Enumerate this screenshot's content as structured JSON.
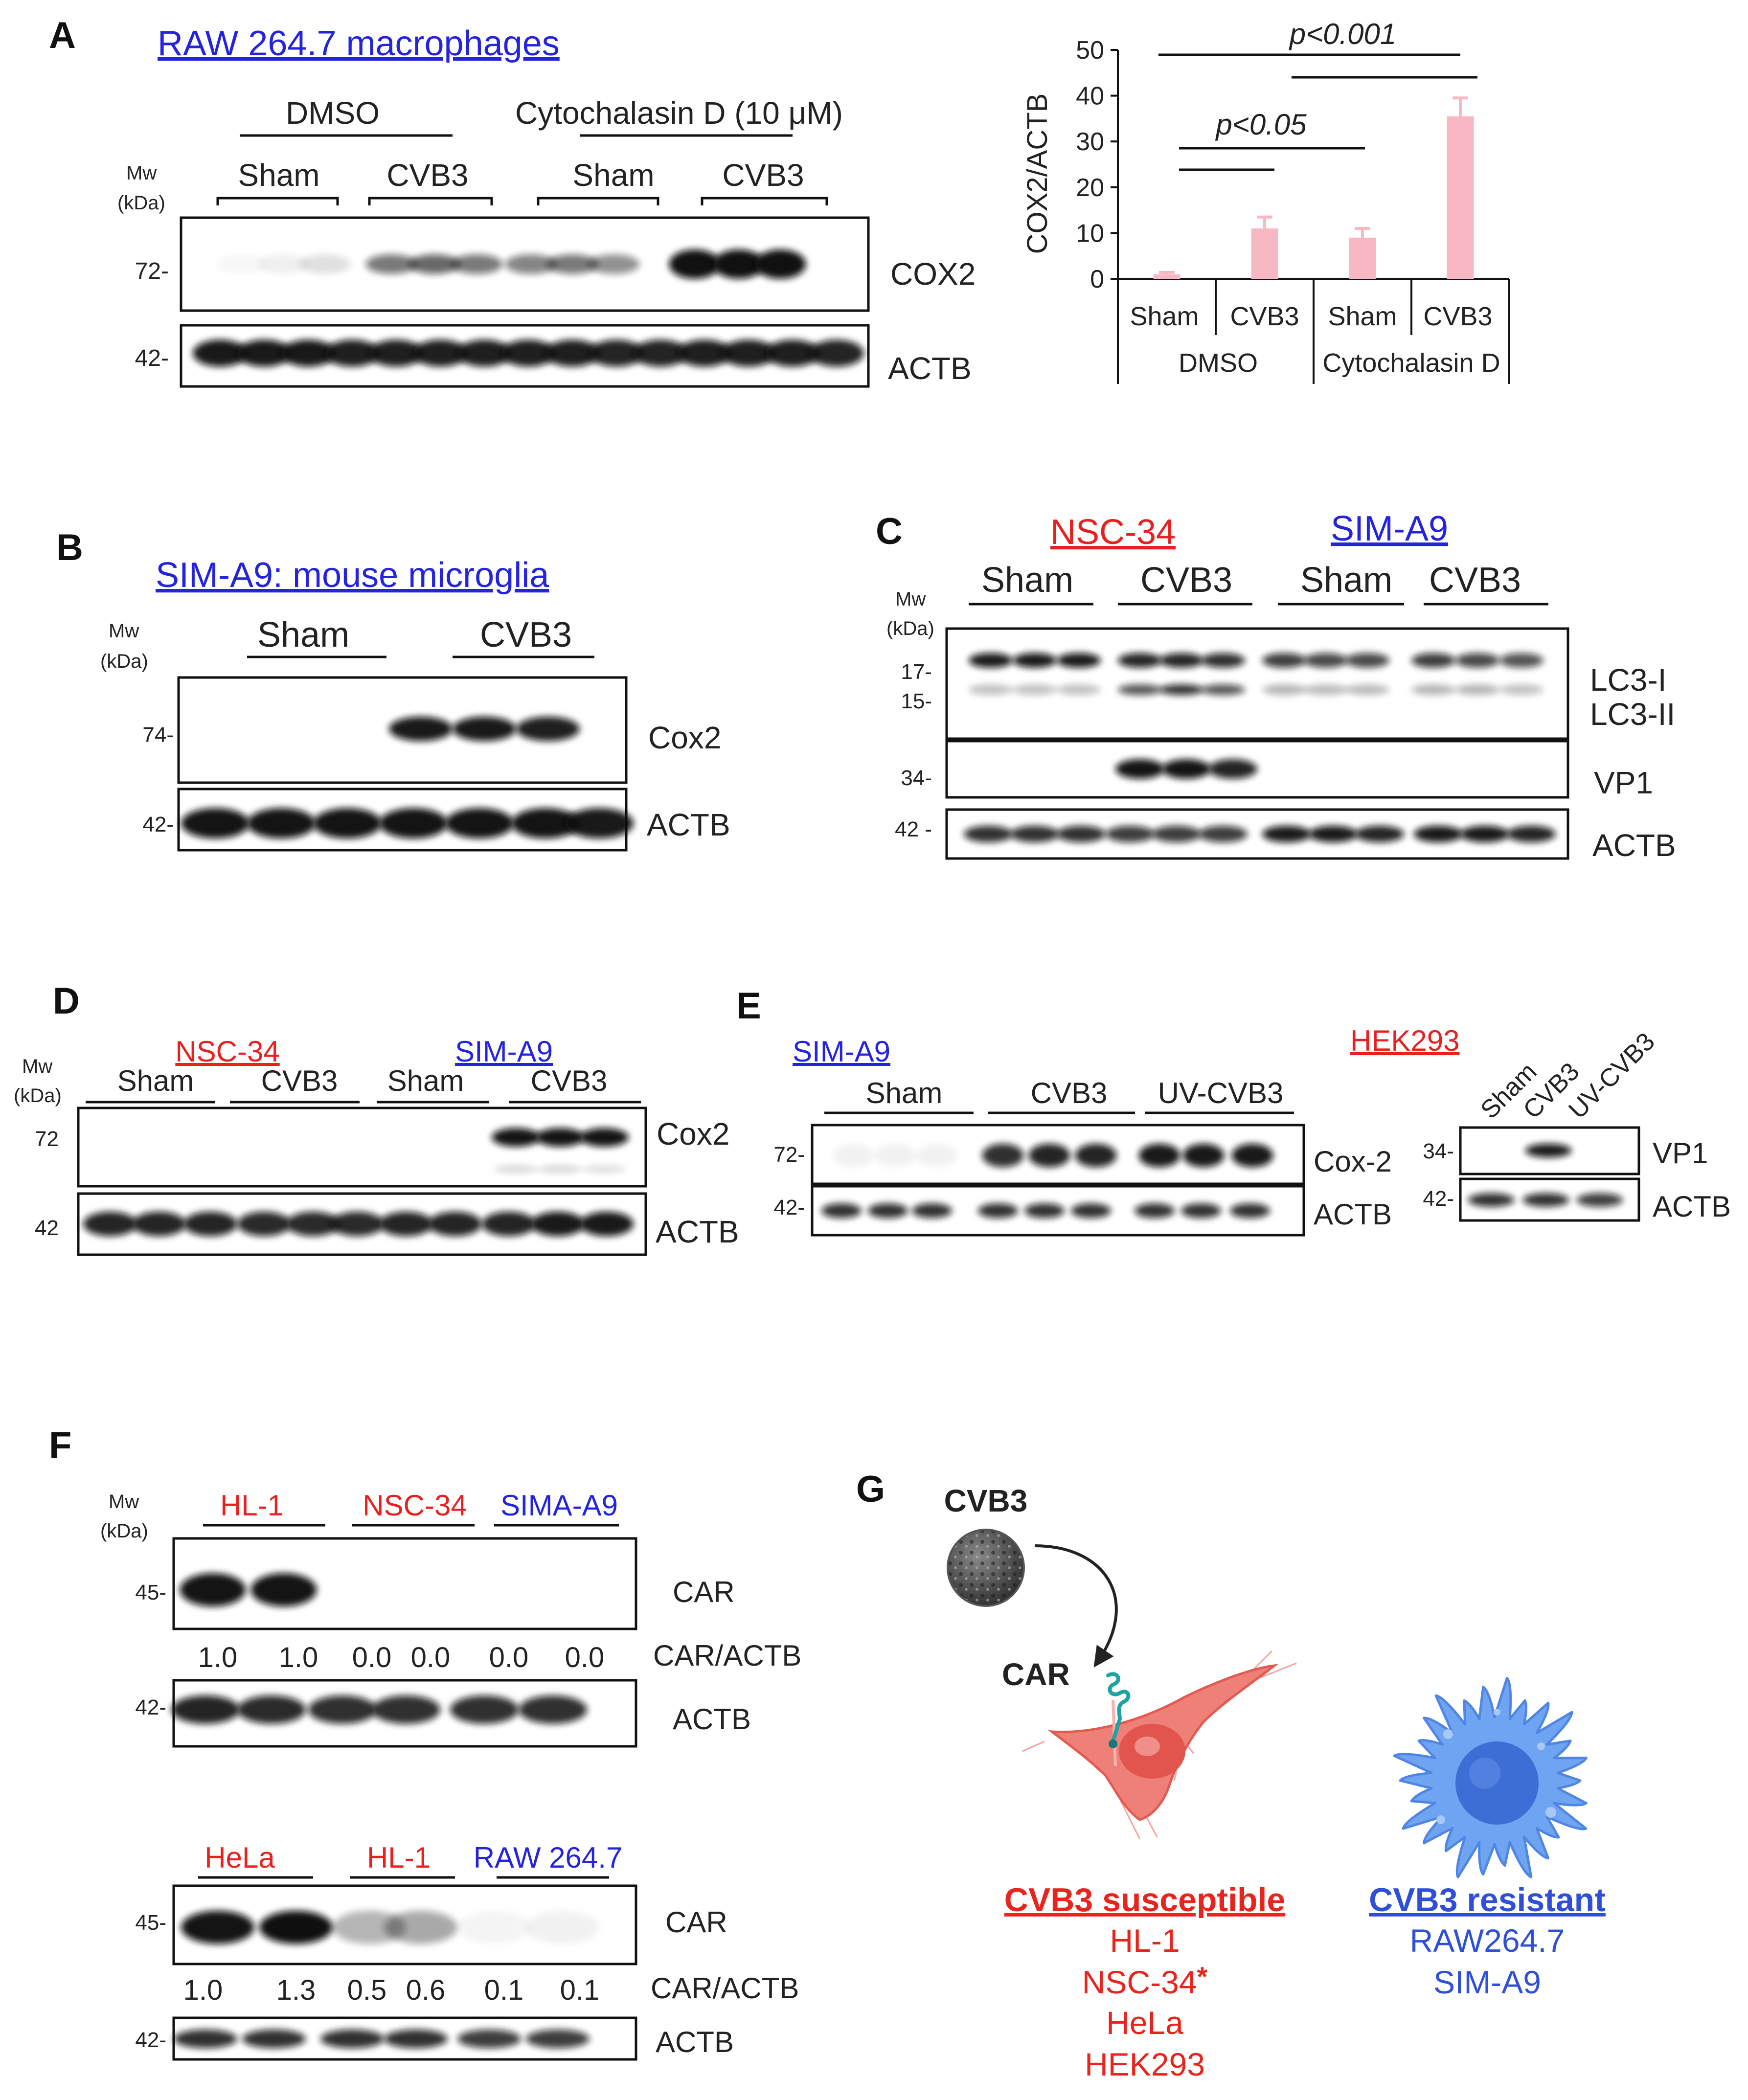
{
  "colors": {
    "blue": "#2323e0",
    "red": "#e82020",
    "bar": "#f8b8c3",
    "text": "#222222",
    "resistant": "#2f4fd8",
    "susceptible": "#e8241c"
  },
  "panelA": {
    "letter": "A",
    "title": "RAW 264.7 macrophages",
    "mw_line1": "Mw",
    "mw_line2": "(kDa)",
    "group_dmso": "DMSO",
    "group_cyto": "Cytochalasin D (10 μM)",
    "lanes": [
      "Sham",
      "CVB3",
      "Sham",
      "CVB3"
    ],
    "marker_72": "72-",
    "marker_42": "42-",
    "band_cox2": "COX2",
    "band_actb": "ACTB"
  },
  "chart_data": {
    "type": "bar",
    "categories": [
      "Sham",
      "CVB3",
      "Sham",
      "CVB3"
    ],
    "groups": [
      "DMSO",
      "Cytochalasin D"
    ],
    "values": [
      1,
      11,
      9,
      35.5
    ],
    "errors": [
      0.4,
      2.5,
      2.0,
      4.0
    ],
    "ylabel": "COX2/ACTB",
    "ylim": [
      0,
      50
    ],
    "yticks": [
      "0",
      "10",
      "20",
      "30",
      "40",
      "50"
    ],
    "annotations": [
      "p<0.05",
      "p<0.001"
    ]
  },
  "panelB": {
    "letter": "B",
    "title": "SIM-A9: mouse microglia",
    "mw_line1": "Mw",
    "mw_line2": "(kDa)",
    "lanes": [
      "Sham",
      "CVB3"
    ],
    "marker_74": "74-",
    "marker_42": "42-",
    "band_cox2": "Cox2",
    "band_actb": "ACTB"
  },
  "panelC": {
    "letter": "C",
    "cell_red": "NSC-34",
    "cell_blue": "SIM-A9",
    "mw_line1": "Mw",
    "mw_line2": "(kDa)",
    "lanes": [
      "Sham",
      "CVB3",
      "Sham",
      "CVB3"
    ],
    "marker_17": "17-",
    "marker_15": "15-",
    "marker_34": "34-",
    "marker_42": "42 -",
    "band_lc3i": "LC3-I",
    "band_lc3ii": "LC3-II",
    "band_vp1": "VP1",
    "band_actb": "ACTB"
  },
  "panelD": {
    "letter": "D",
    "cell_red": "NSC-34",
    "cell_blue": "SIM-A9",
    "mw_line1": "Mw",
    "mw_line2": "(kDa)",
    "lanes": [
      "Sham",
      "CVB3",
      "Sham",
      "CVB3"
    ],
    "marker_72": "72",
    "marker_42": "42",
    "band_cox2": "Cox2",
    "band_actb": "ACTB"
  },
  "panelE": {
    "letter": "E",
    "cell_blue": "SIM-A9",
    "cell_red": "HEK293",
    "lanes": [
      "Sham",
      "CVB3",
      "UV-CVB3"
    ],
    "marker_72": "72-",
    "marker_42": "42-",
    "marker_34": "34-",
    "marker_42b": "42-",
    "band_cox2": "Cox-2",
    "band_actb": "ACTB",
    "band_vp1": "VP1",
    "band_actb2": "ACTB",
    "rot_lanes": [
      "Sham",
      "CVB3",
      "UV-CVB3"
    ]
  },
  "panelF": {
    "letter": "F",
    "mw_line1": "Mw",
    "mw_line2": "(kDa)",
    "top_cells": [
      "HL-1",
      "NSC-34",
      "SIMA-A9"
    ],
    "bottom_cells": [
      "HeLa",
      "HL-1",
      "RAW 264.7"
    ],
    "marker_45": "45-",
    "marker_42": "42-",
    "band_car": "CAR",
    "band_ratio": "CAR/ACTB",
    "band_actb": "ACTB",
    "top_ratios": [
      "1.0",
      "1.0",
      "0.0",
      "0.0",
      "0.0",
      "0.0"
    ],
    "bottom_ratios": [
      "1.0",
      "1.3",
      "0.5",
      "0.6",
      "0.1",
      "0.1"
    ]
  },
  "panelG": {
    "letter": "G",
    "virus": "CVB3",
    "receptor": "CAR",
    "susceptible_title": "CVB3 susceptible",
    "susceptible_list": [
      "HL-1",
      "NSC-34",
      "HeLa",
      "HEK293"
    ],
    "susceptible_mark": "*",
    "resistant_title": "CVB3 resistant",
    "resistant_list": [
      "RAW264.7",
      "SIM-A9"
    ]
  }
}
